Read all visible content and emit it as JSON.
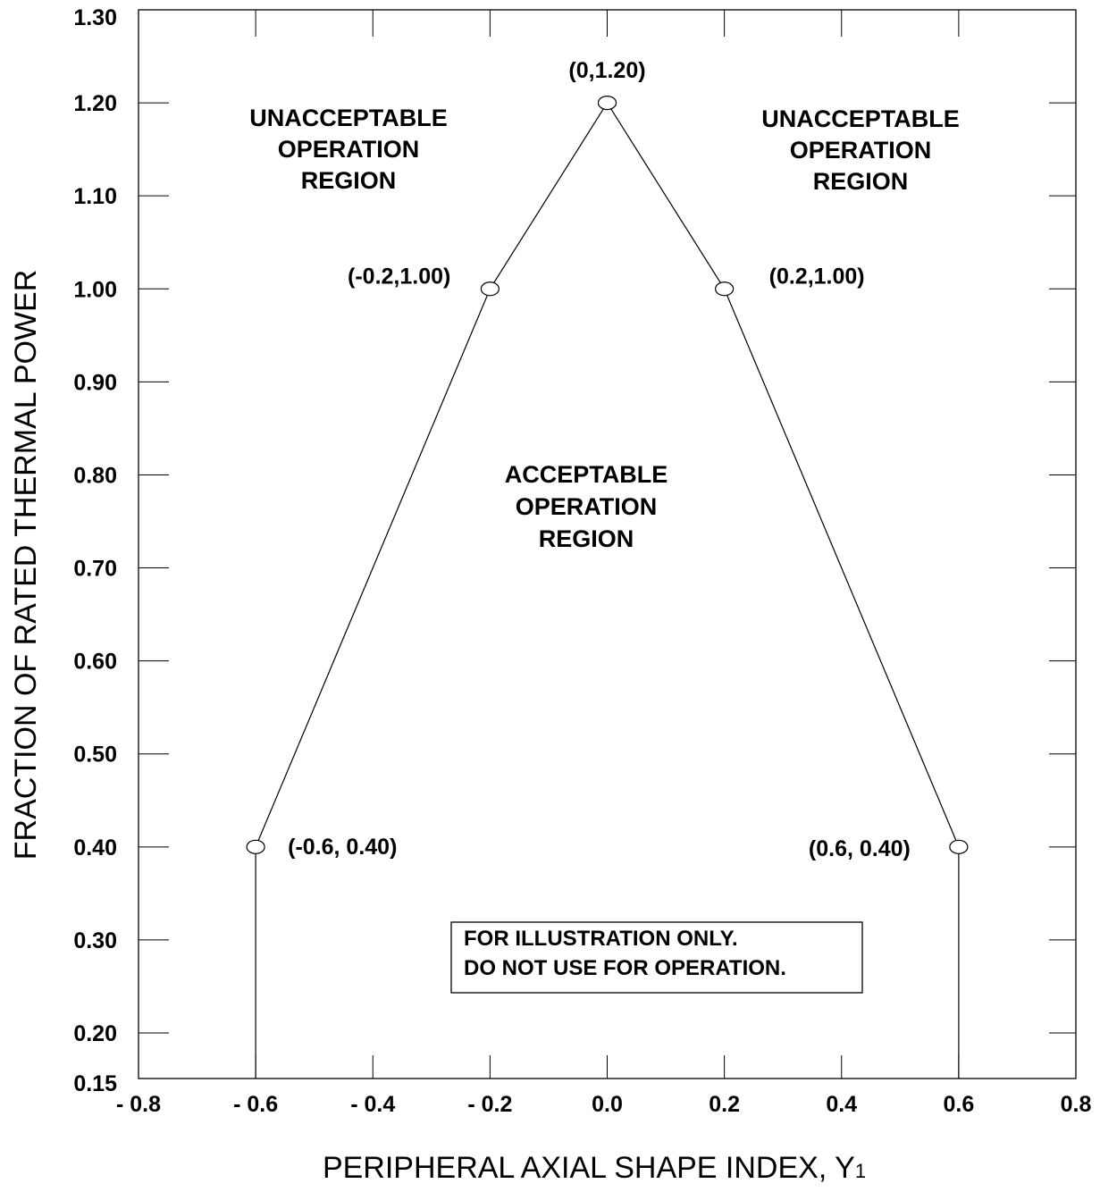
{
  "chart_data": {
    "type": "line",
    "xlabel": "PERIPHERAL AXIAL SHAPE INDEX, Y",
    "xlabel_subscript": "1",
    "ylabel": "FRACTION OF RATED THERMAL POWER",
    "xlim": [
      -0.8,
      0.8
    ],
    "ylim": [
      0.15,
      1.3
    ],
    "x_ticks": [
      -0.8,
      -0.6,
      -0.4,
      -0.2,
      0.0,
      0.2,
      0.4,
      0.6,
      0.8
    ],
    "x_tick_labels": [
      "- 0.8",
      "- 0.6",
      "- 0.4",
      "- 0.2",
      "0.0",
      "0.2",
      "0.4",
      "0.6",
      "0.8"
    ],
    "y_ticks": [
      0.15,
      0.2,
      0.3,
      0.4,
      0.5,
      0.6,
      0.7,
      0.8,
      0.9,
      1.0,
      1.1,
      1.2,
      1.3
    ],
    "y_tick_labels": [
      "0.15",
      "0.20",
      "0.30",
      "0.40",
      "0.50",
      "0.60",
      "0.70",
      "0.80",
      "0.90",
      "1.00",
      "1.10",
      "1.20",
      "1.30"
    ],
    "grid": false,
    "series": [
      {
        "x": [
          -0.6,
          -0.6,
          -0.2,
          0.0,
          0.2,
          0.6,
          0.6
        ],
        "y": [
          0.15,
          0.4,
          1.0,
          1.2,
          1.0,
          0.4,
          0.15
        ],
        "color": "#000000"
      }
    ],
    "points": [
      {
        "x": -0.6,
        "y": 0.4,
        "label": "(-0.6, 0.40)"
      },
      {
        "x": -0.2,
        "y": 1.0,
        "label": "(-0.2,1.00)"
      },
      {
        "x": 0.0,
        "y": 1.2,
        "label": "(0,1.20)"
      },
      {
        "x": 0.2,
        "y": 1.0,
        "label": "(0.2,1.00)"
      },
      {
        "x": 0.6,
        "y": 0.4,
        "label": "(0.6, 0.40)"
      }
    ],
    "annotations": {
      "unacceptable_left": [
        "UNACCEPTABLE",
        "OPERATION",
        "REGION"
      ],
      "unacceptable_right": [
        "UNACCEPTABLE",
        "OPERATION",
        "REGION"
      ],
      "acceptable": [
        "ACCEPTABLE",
        "OPERATION",
        "REGION"
      ],
      "note": [
        "FOR ILLUSTRATION ONLY.",
        "DO NOT USE FOR OPERATION."
      ]
    }
  }
}
